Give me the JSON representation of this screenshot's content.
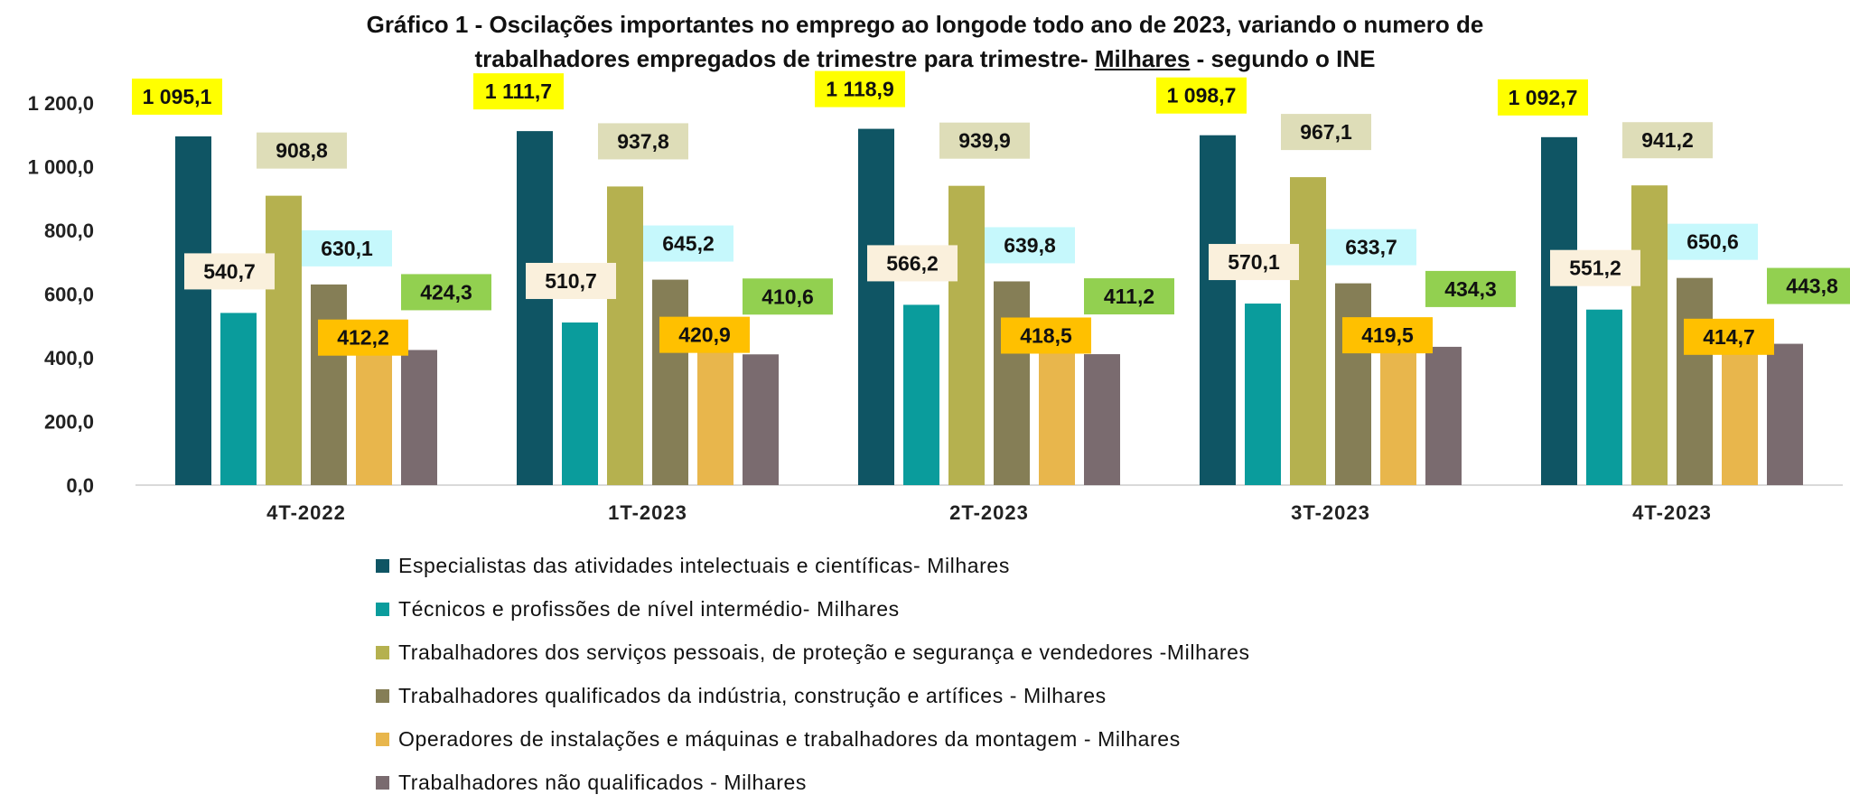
{
  "title": {
    "line1": "Gráfico 1 - Oscilações importantes no emprego ao  longode todo ano de 2023,  variando o numero de",
    "line2_pre": "trabalhadores empregados de trimestre para trimestre- ",
    "line2_underlined": "Milhares",
    "line2_post": " - segundo o INE"
  },
  "chart_data": {
    "type": "bar",
    "categories": [
      "4T-2022",
      "1T-2023",
      "2T-2023",
      "3T-2023",
      "4T-2023"
    ],
    "ylim": [
      0,
      1200
    ],
    "yticks": [
      "0,0",
      "200,0",
      "400,0",
      "600,0",
      "800,0",
      "1 000,0",
      "1 200,0"
    ],
    "grid": false,
    "legend_position": "bottom",
    "series": [
      {
        "name": "Especialistas das atividades intelectuais e científicas- Milhares",
        "color": "#0f5564",
        "label_bg": "#ffff00",
        "values": [
          1095.1,
          1111.7,
          1118.9,
          1098.7,
          1092.7
        ],
        "labels": [
          "1 095,1",
          "1 111,7",
          "1 118,9",
          "1 098,7",
          "1 092,7"
        ]
      },
      {
        "name": "Técnicos e profissões de nível intermédio- Milhares",
        "color": "#0a9c9c",
        "label_bg": "#faf0dc",
        "values": [
          540.7,
          510.7,
          566.2,
          570.1,
          551.2
        ],
        "labels": [
          "540,7",
          "510,7",
          "566,2",
          "570,1",
          "551,2"
        ]
      },
      {
        "name": "Trabalhadores dos serviços pessoais, de proteção e segurança e vendedores -Milhares",
        "color": "#b5b14f",
        "label_bg": "#deddb8",
        "values": [
          908.8,
          937.8,
          939.9,
          967.1,
          941.2
        ],
        "labels": [
          "908,8",
          "937,8",
          "939,9",
          "967,1",
          "941,2"
        ]
      },
      {
        "name": "Trabalhadores qualificados da indústria, construção e artífices - Milhares",
        "color": "#857e56",
        "label_bg": "#c6f8fc",
        "values": [
          630.1,
          645.2,
          639.8,
          633.7,
          650.6
        ],
        "labels": [
          "630,1",
          "645,2",
          "639,8",
          "633,7",
          "650,6"
        ]
      },
      {
        "name": "Operadores de instalações e máquinas e trabalhadores da montagem - Milhares",
        "color": "#e8b64c",
        "label_bg": "#ffc000",
        "values": [
          412.2,
          420.9,
          418.5,
          419.5,
          414.7
        ],
        "labels": [
          "412,2",
          "420,9",
          "418,5",
          "419,5",
          "414,7"
        ]
      },
      {
        "name": "Trabalhadores não qualificados - Milhares",
        "color": "#7a6b6f",
        "label_bg": "#92d050",
        "values": [
          424.3,
          410.6,
          411.2,
          434.3,
          443.8
        ],
        "labels": [
          "424,3",
          "410,6",
          "411,2",
          "434,3",
          "443,8"
        ]
      }
    ]
  }
}
